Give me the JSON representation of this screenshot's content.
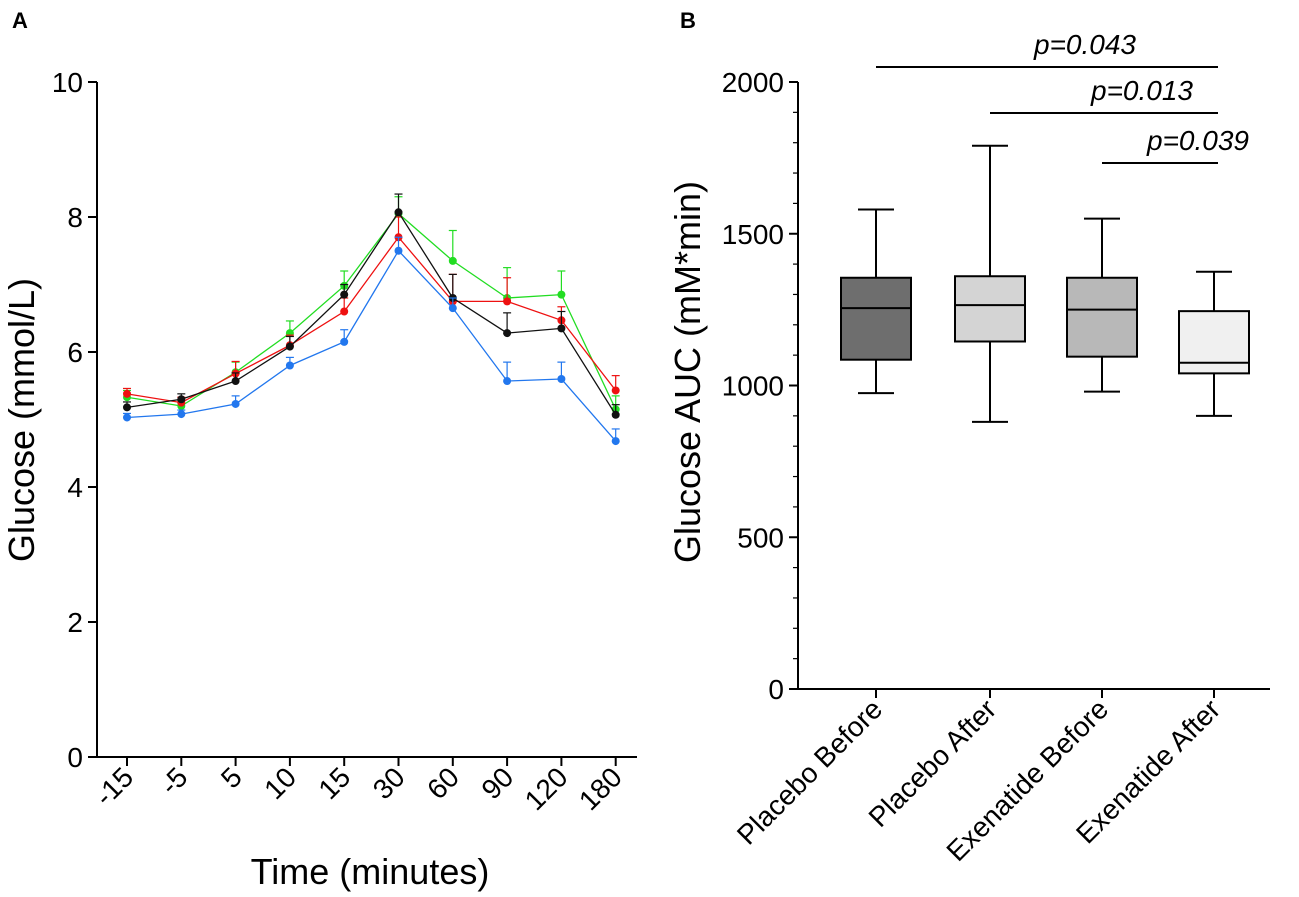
{
  "chart_data": [
    {
      "panel": "A",
      "type": "line",
      "title": "",
      "xlabel": "Time (minutes)",
      "ylabel": "Glucose (mmol/L)",
      "ylim": [
        0,
        10
      ],
      "yticks": [
        0,
        2,
        4,
        6,
        8,
        10
      ],
      "categories": [
        "-15",
        "-5",
        "5",
        "10",
        "15",
        "30",
        "60",
        "90",
        "120",
        "180"
      ],
      "grid": false,
      "series": [
        {
          "name": "green",
          "color": "#22dd22",
          "values": [
            5.33,
            5.2,
            5.7,
            6.28,
            6.98,
            8.05,
            7.35,
            6.8,
            6.85,
            5.15
          ],
          "errors": [
            0.1,
            0.08,
            0.15,
            0.18,
            0.22,
            0.25,
            0.45,
            0.45,
            0.35,
            0.2
          ]
        },
        {
          "name": "red",
          "color": "#ee1111",
          "values": [
            5.38,
            5.25,
            5.68,
            6.1,
            6.6,
            7.7,
            6.75,
            6.75,
            6.47,
            5.43
          ],
          "errors": [
            0.08,
            0.08,
            0.18,
            0.15,
            0.2,
            0.3,
            0.4,
            0.35,
            0.2,
            0.22
          ]
        },
        {
          "name": "black",
          "color": "#111111",
          "values": [
            5.18,
            5.3,
            5.57,
            6.08,
            6.85,
            8.07,
            6.8,
            6.28,
            6.35,
            5.07
          ],
          "errors": [
            0.08,
            0.08,
            0.12,
            0.15,
            0.15,
            0.27,
            0.35,
            0.3,
            0.25,
            0.15
          ]
        },
        {
          "name": "blue",
          "color": "#2277ee",
          "values": [
            5.03,
            5.08,
            5.23,
            5.8,
            6.15,
            7.5,
            6.65,
            5.57,
            5.6,
            4.68
          ],
          "errors": [
            0.06,
            0.06,
            0.12,
            0.12,
            0.18,
            0.2,
            0.15,
            0.28,
            0.25,
            0.18
          ]
        }
      ]
    },
    {
      "panel": "B",
      "type": "box",
      "title": "",
      "xlabel": "",
      "ylabel": "Glucose AUC  (mM*min)",
      "ylim": [
        0,
        2000
      ],
      "yticks": [
        0,
        500,
        1000,
        1500,
        2000
      ],
      "categories": [
        "Placebo Before",
        "Placebo After",
        "Exenatide Before",
        "Exenatide After"
      ],
      "boxes": [
        {
          "label": "Placebo Before",
          "min": 975,
          "q1": 1085,
          "median": 1255,
          "q3": 1355,
          "max": 1580,
          "fill": "#6e6e6e"
        },
        {
          "label": "Placebo After",
          "min": 880,
          "q1": 1145,
          "median": 1265,
          "q3": 1360,
          "max": 1790,
          "fill": "#d4d4d4"
        },
        {
          "label": "Exenatide Before",
          "min": 980,
          "q1": 1095,
          "median": 1250,
          "q3": 1355,
          "max": 1550,
          "fill": "#b8b8b8"
        },
        {
          "label": "Exenatide After",
          "min": 900,
          "q1": 1040,
          "median": 1075,
          "q3": 1245,
          "max": 1375,
          "fill": "#f0f0f0"
        }
      ],
      "comparisons": [
        {
          "from": 0,
          "to": 3,
          "label": "p=0.043",
          "level": 1
        },
        {
          "from": 1,
          "to": 3,
          "label": "p=0.013",
          "level": 2
        },
        {
          "from": 2,
          "to": 3,
          "label": "p=0.039",
          "level": 3
        }
      ]
    }
  ]
}
